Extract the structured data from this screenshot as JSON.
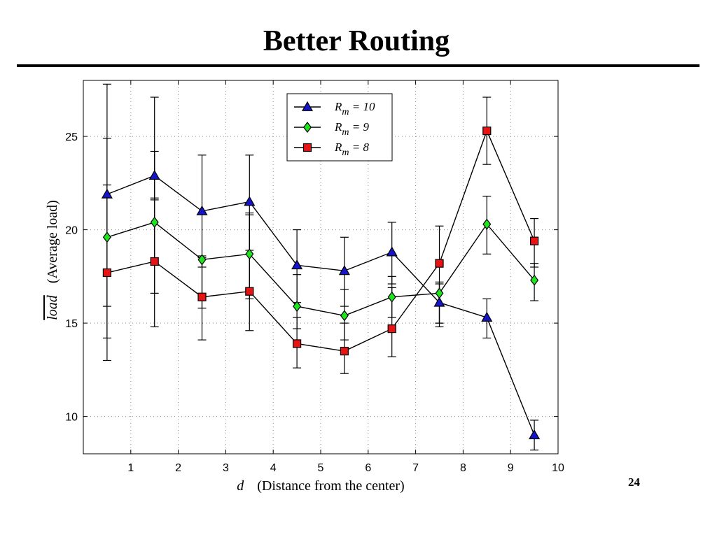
{
  "slide": {
    "title": "Better Routing",
    "page_number": "24"
  },
  "chart_data": {
    "type": "line",
    "x": [
      0.5,
      1.5,
      2.5,
      3.5,
      4.5,
      5.5,
      6.5,
      7.5,
      8.5,
      9.5
    ],
    "xlim": [
      0,
      10
    ],
    "ylim": [
      8,
      28
    ],
    "xticks": [
      "1",
      "2",
      "3",
      "4",
      "5",
      "6",
      "7",
      "8",
      "9",
      "10"
    ],
    "yticks": [
      "10",
      "15",
      "20",
      "25"
    ],
    "xticks_values": [
      1,
      2,
      3,
      4,
      5,
      6,
      7,
      8,
      9,
      10
    ],
    "yticks_values": [
      10,
      15,
      20,
      25
    ],
    "grid": true,
    "legend_position": "top-center",
    "xlabel": {
      "var": "d",
      "text": "(Distance from the center)"
    },
    "ylabel": {
      "var": "load",
      "overline": true,
      "text": "(Average load)"
    },
    "series": [
      {
        "name": "R_m = 10",
        "legend_var": "R",
        "legend_sub": "m",
        "legend_rest": "= 10",
        "marker": "triangle",
        "color": "#1414c8",
        "values": [
          21.9,
          22.9,
          21.0,
          21.5,
          18.1,
          17.8,
          18.8,
          16.1,
          15.3,
          9.0
        ],
        "err_low": [
          15.9,
          21.6,
          18.0,
          18.9,
          16.1,
          15.9,
          17.1,
          15.0,
          14.2,
          8.2
        ],
        "err_high": [
          27.8,
          27.1,
          24.0,
          24.0,
          20.0,
          19.6,
          20.4,
          17.2,
          16.3,
          9.8
        ]
      },
      {
        "name": "R_m = 9",
        "legend_var": "R",
        "legend_sub": "m",
        "legend_rest": "= 9",
        "marker": "diamond",
        "color": "#1ee61e",
        "values": [
          19.6,
          20.4,
          18.4,
          18.7,
          15.9,
          15.4,
          16.4,
          16.6,
          20.3,
          17.3
        ],
        "err_low": [
          14.2,
          16.6,
          15.8,
          16.3,
          14.7,
          14.1,
          15.3,
          15.0,
          18.7,
          16.2
        ],
        "err_high": [
          24.9,
          24.2,
          18.6,
          20.9,
          17.6,
          16.8,
          17.5,
          17.1,
          21.8,
          18.2
        ]
      },
      {
        "name": "R_m = 8",
        "legend_var": "R",
        "legend_sub": "m",
        "legend_rest": "= 8",
        "marker": "square",
        "color": "#e61414",
        "values": [
          17.7,
          18.3,
          16.4,
          16.7,
          13.9,
          13.5,
          14.7,
          18.2,
          25.3,
          19.4
        ],
        "err_low": [
          13.0,
          14.8,
          14.1,
          14.6,
          12.6,
          12.3,
          13.2,
          14.8,
          23.5,
          18.0
        ],
        "err_high": [
          22.4,
          21.7,
          18.5,
          20.8,
          15.3,
          15.0,
          16.9,
          20.2,
          27.1,
          20.6
        ]
      }
    ]
  }
}
